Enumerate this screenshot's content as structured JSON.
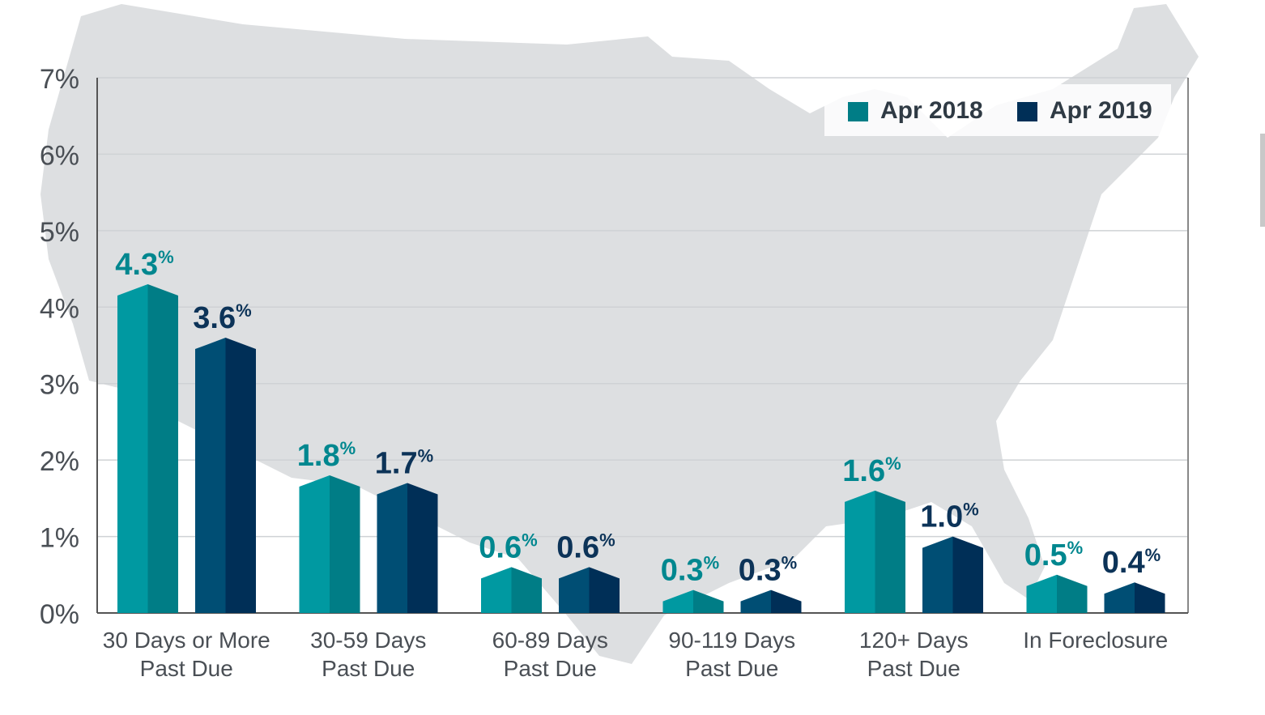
{
  "chart_data": {
    "type": "bar",
    "title": "",
    "xlabel": "",
    "ylabel": "",
    "ylim": [
      0,
      7
    ],
    "yticks": [
      "0%",
      "1%",
      "2%",
      "3%",
      "4%",
      "5%",
      "6%",
      "7%"
    ],
    "grid": true,
    "legend_position": "top-right",
    "categories": [
      [
        "30 Days or More",
        "Past Due"
      ],
      [
        "30-59 Days",
        "Past Due"
      ],
      [
        "60-89 Days",
        "Past Due"
      ],
      [
        "90-119 Days",
        "Past Due"
      ],
      [
        "120+ Days",
        "Past Due"
      ],
      [
        "In Foreclosure"
      ]
    ],
    "series": [
      {
        "name": "Apr 2018",
        "values": [
          4.3,
          1.8,
          0.6,
          0.3,
          1.6,
          0.5
        ],
        "labels": [
          "4.3",
          "1.8",
          "0.6",
          "0.3",
          "1.6",
          "0.5"
        ],
        "color": "#0099a1",
        "shade": "#007d86",
        "label_color": "#00878f"
      },
      {
        "name": "Apr 2019",
        "values": [
          3.6,
          1.7,
          0.6,
          0.3,
          1.0,
          0.4
        ],
        "labels": [
          "3.6",
          "1.7",
          "0.6",
          "0.3",
          "1.0",
          "0.4"
        ],
        "color": "#004e74",
        "shade": "#002f57",
        "label_color": "#0c3358"
      }
    ],
    "value_suffix": "%",
    "background": "map of the United States"
  }
}
